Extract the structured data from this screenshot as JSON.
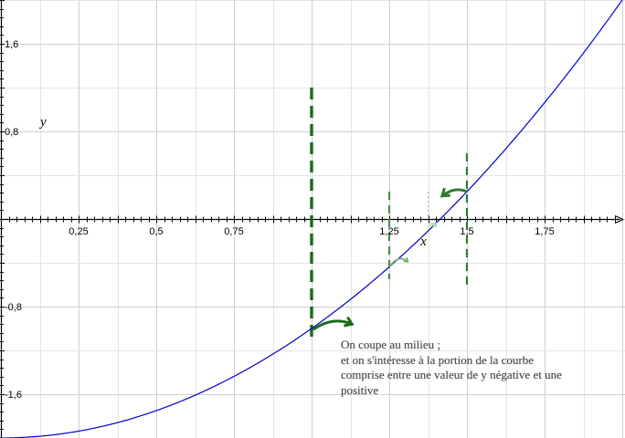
{
  "chart_data": {
    "type": "line",
    "title": "",
    "xlabel": "x",
    "ylabel": "y",
    "xlim": [
      -0.02,
      2.0
    ],
    "ylim": [
      -2.0,
      2.0
    ],
    "grid": true,
    "x_ticks": [
      {
        "value": 0.25,
        "label": "0,25"
      },
      {
        "value": 0.5,
        "label": "0,5"
      },
      {
        "value": 0.75,
        "label": "0,75"
      },
      {
        "value": 1.25,
        "label": "1,25"
      },
      {
        "value": 1.5,
        "label": "1,5"
      },
      {
        "value": 1.75,
        "label": "1,75"
      }
    ],
    "y_ticks": [
      {
        "value": 1.6,
        "label": "1,6"
      },
      {
        "value": 0.8,
        "label": "0,8"
      },
      {
        "value": -0.8,
        "label": "-0,8"
      },
      {
        "value": -1.6,
        "label": "-1,6"
      }
    ],
    "series": [
      {
        "color": "#0000cc",
        "x": [
          0.0,
          0.1,
          0.2,
          0.3,
          0.4,
          0.5,
          0.6,
          0.7,
          0.8,
          0.9,
          1.0,
          1.1,
          1.2,
          1.3,
          1.4,
          1.5,
          1.6,
          1.7,
          1.8,
          1.9,
          2.0
        ],
        "y": [
          -2.0,
          -1.99,
          -1.96,
          -1.91,
          -1.84,
          -1.75,
          -1.64,
          -1.51,
          -1.36,
          -1.19,
          -1.0,
          -0.79,
          -0.56,
          -0.31,
          -0.04,
          0.25,
          0.56,
          0.89,
          1.24,
          1.61,
          2.0
        ]
      }
    ],
    "markers": [
      {
        "x": 1.0,
        "y_from": 1.2,
        "y_to": -1.1,
        "color": "#1a6b1a",
        "style": "dashed-bold"
      },
      {
        "x": 1.25,
        "y_from": 0.25,
        "y_to": -0.55,
        "color": "#4a8f4a",
        "style": "dashed"
      },
      {
        "x": 1.375,
        "y_from": 0.25,
        "y_to": 0.0,
        "color": "#9ccc9c",
        "style": "dotted"
      },
      {
        "x": 1.5,
        "y_from": 0.6,
        "y_to": -0.6,
        "color": "#2e7d2e",
        "style": "dashed"
      }
    ],
    "arrows": [
      {
        "from": [
          1.005,
          -1.01
        ],
        "to": [
          1.13,
          -0.96
        ],
        "dir": "right",
        "color": "#1a6b1a"
      },
      {
        "from": [
          1.25,
          -0.44
        ],
        "to": [
          1.31,
          -0.39
        ],
        "dir": "right",
        "color": "#6fae6f"
      },
      {
        "from": [
          1.375,
          -0.085
        ],
        "to": [
          1.4,
          -0.07
        ],
        "dir": "right",
        "color": "#b8dcb8"
      },
      {
        "from": [
          1.5,
          0.25
        ],
        "to": [
          1.42,
          0.21
        ],
        "dir": "left",
        "color": "#2e7d2e"
      }
    ],
    "annotation": [
      "On coupe au milieu ;",
      "et on s'intéresse à la portion de la courbe",
      "comprise entre une valeur de y négative et une",
      "positive"
    ]
  }
}
